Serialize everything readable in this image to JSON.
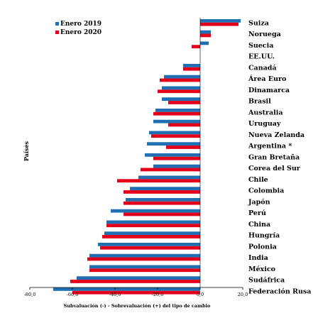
{
  "chart_data": {
    "type": "bar",
    "orientation": "horizontal",
    "categories": [
      "Suiza",
      "Noruega",
      "Suecia",
      "EE.UU.",
      "Canadá",
      "Área Euro",
      "Dinamarca",
      "Brasil",
      "Australia",
      "Uruguay",
      "Nueva Zelanda",
      "Argentina *",
      "Gran Bretaña",
      "Corea del Sur",
      "Chile",
      "Colombia",
      "Japón",
      "Perú",
      "China",
      "Hungría",
      "Polonia",
      "India",
      "México",
      "Sudáfrica",
      "Federación Rusa"
    ],
    "series": [
      {
        "name": "Enero 2019",
        "color": "#1f6fb2",
        "values": [
          19,
          5,
          4,
          0,
          -8,
          -17,
          -18,
          -18,
          -21,
          -22,
          -24,
          -25,
          -26,
          -22,
          -29,
          -33,
          -35,
          -42,
          -44,
          -45,
          -48,
          -52,
          -52,
          -58,
          -69
        ]
      },
      {
        "name": "Enero 2020",
        "color": "#e3001b",
        "values": [
          18,
          5,
          -4,
          0,
          -8,
          -19,
          -20,
          -15,
          -22,
          -15,
          -23,
          -16,
          -22,
          -28,
          -39,
          -36,
          -36,
          -36,
          -44,
          -46,
          -47,
          -53,
          -52,
          -61,
          -60
        ]
      }
    ],
    "xticks": [
      "-80,0",
      "-60,0",
      "-40,0",
      "-20,0",
      "0,0",
      "20,0"
    ],
    "xlim": [
      -80,
      20
    ],
    "xlabel": "Subvaluación (-) - Sobrevaluación (+) del tipo de cambio",
    "ylabel": "Países",
    "legend_position": "top-left"
  }
}
